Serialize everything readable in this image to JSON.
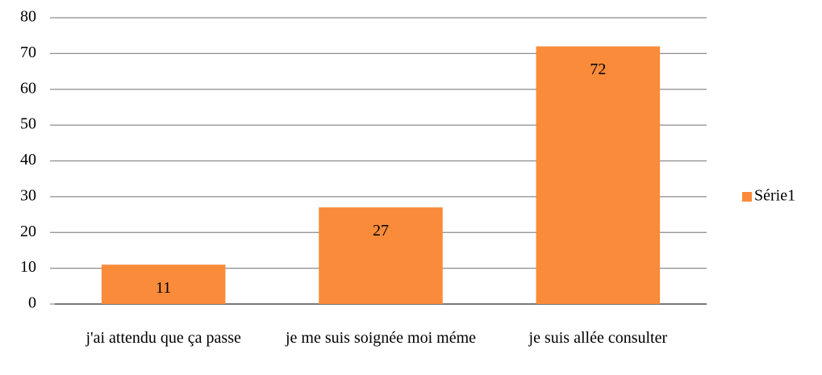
{
  "chart_data": {
    "type": "bar",
    "categories": [
      "j'ai attendu que ça passe",
      "je me suis soignée moi méme",
      "je suis allée consulter"
    ],
    "series": [
      {
        "name": "Série1",
        "color": "#f98b3a",
        "values": [
          11,
          27,
          72
        ]
      }
    ],
    "ylim": [
      0,
      80
    ],
    "yticks": [
      0,
      10,
      20,
      30,
      40,
      50,
      60,
      70,
      80
    ],
    "grid": true,
    "legend": "right"
  }
}
